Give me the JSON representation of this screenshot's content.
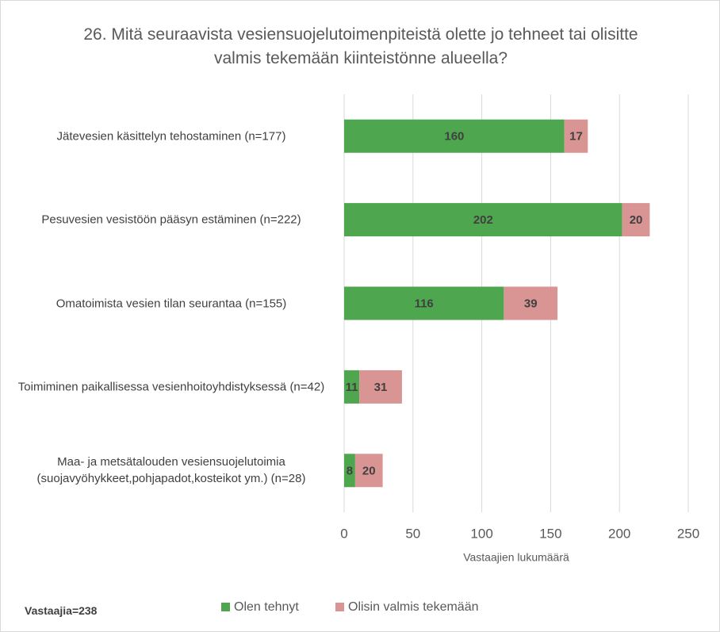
{
  "chart_data": {
    "type": "bar",
    "orientation": "horizontal",
    "stacked": true,
    "title": "26. Mitä seuraavista vesiensuojelutoimenpiteistä olette jo tehneet tai olisitte valmis tekemään kiinteistönne alueella?",
    "categories": [
      "Jätevesien käsittelyn tehostaminen (n=177)",
      "Pesuvesien vesistöön pääsyn estäminen (n=222)",
      "Omatoimista vesien tilan seurantaa (n=155)",
      "Toimiminen paikallisessa vesienhoitoyhdistyksessä (n=42)",
      "Maa- ja metsätalouden vesiensuojelutoimia (suojavyöhykkeet,pohjapadot,kosteikot ym.) (n=28)"
    ],
    "series": [
      {
        "name": "Olen tehnyt",
        "color": "#4ea64e",
        "values": [
          160,
          202,
          116,
          11,
          8
        ]
      },
      {
        "name": "Olisin valmis tekemään",
        "color": "#d99594",
        "values": [
          17,
          20,
          39,
          31,
          20
        ]
      }
    ],
    "xlabel": "Vastaajien lukumäärä",
    "xlim": [
      0,
      250
    ],
    "xticks": [
      0,
      50,
      100,
      150,
      200,
      250
    ],
    "grid": true,
    "legend": "bottom",
    "footnote": "Vastaajia=238"
  }
}
